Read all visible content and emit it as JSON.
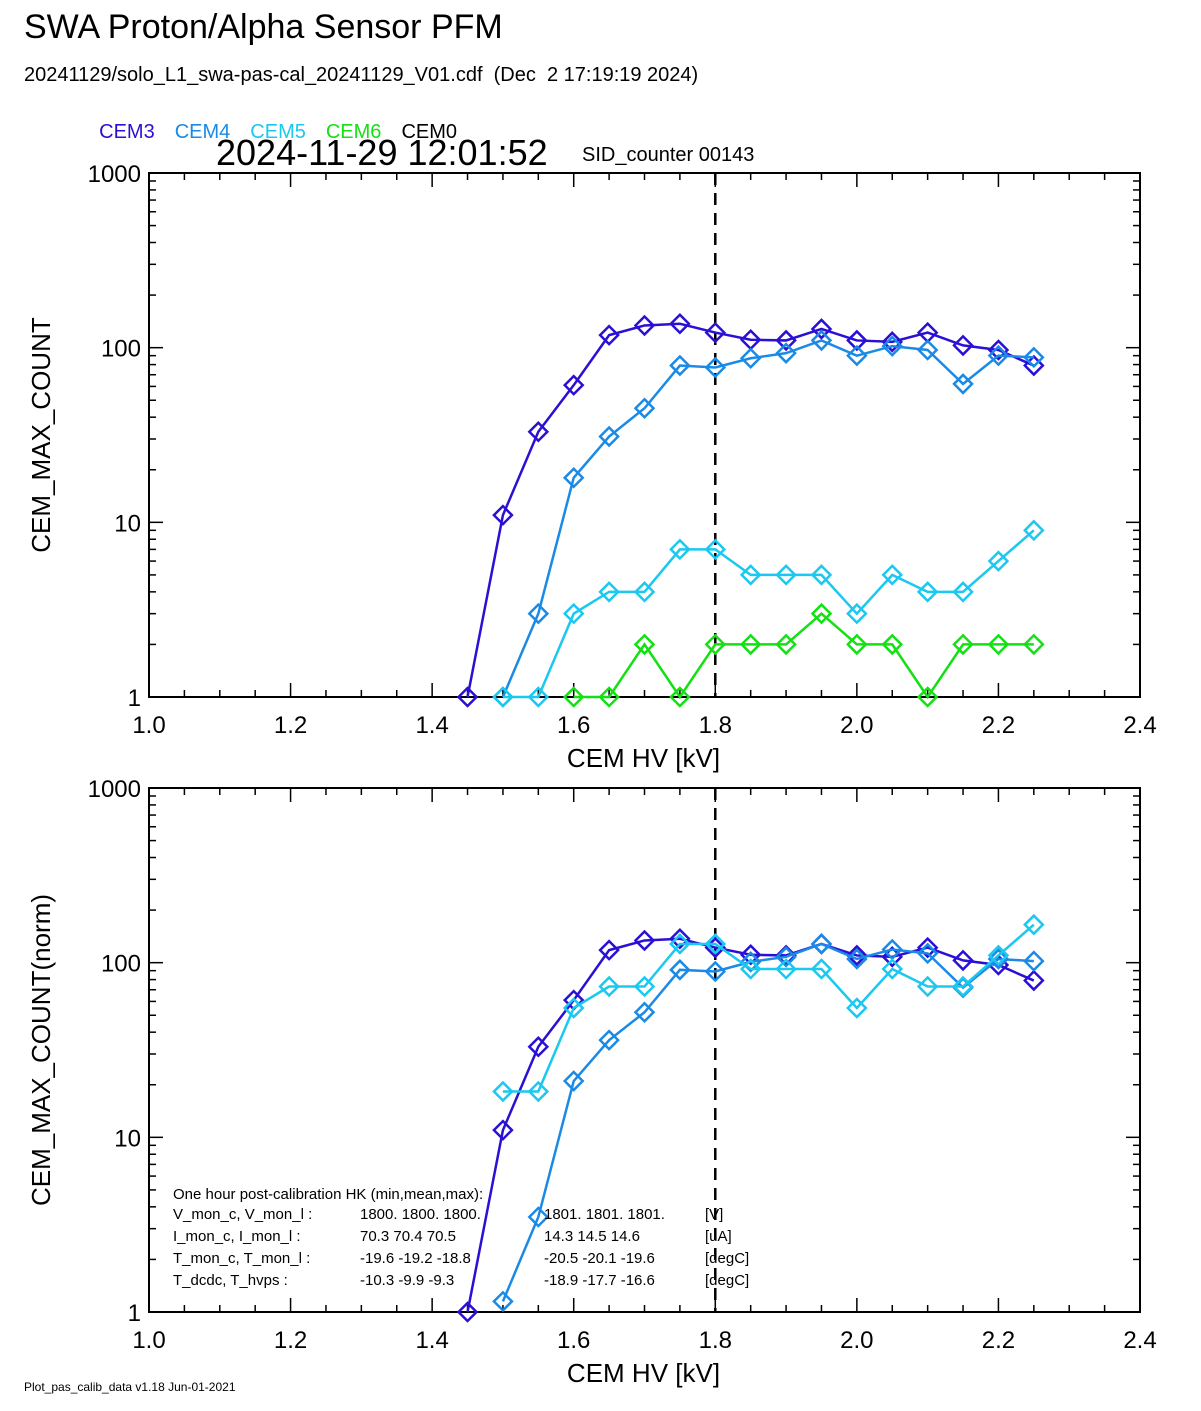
{
  "header": {
    "title": "SWA Proton/Alpha Sensor PFM",
    "subtitle": "20241129/solo_L1_swa-pas-cal_20241129_V01.cdf  (Dec  2 17:19:19 2024)",
    "timestamp": "2024-11-29 12:01:52",
    "sid_counter": "SID_counter 00143"
  },
  "legend": [
    {
      "label": "CEM3",
      "color": "#2a10d4"
    },
    {
      "label": "CEM4",
      "color": "#1a8ae6"
    },
    {
      "label": "CEM5",
      "color": "#1ac8f0"
    },
    {
      "label": "CEM6",
      "color": "#14e014"
    },
    {
      "label": "CEM0",
      "color": "#000000"
    }
  ],
  "footer": "Plot_pas_calib_data v1.18 Jun-01-2021",
  "chart_data": [
    {
      "type": "line",
      "xlabel": "CEM HV [kV]",
      "ylabel": "CEM_MAX_COUNT",
      "xlim": [
        1.0,
        2.4
      ],
      "ylim": [
        1,
        1000
      ],
      "yscale": "log",
      "xticks": [
        "1.0",
        "1.2",
        "1.4",
        "1.6",
        "1.8",
        "2.0",
        "2.2",
        "2.4"
      ],
      "yticks": [
        "1",
        "10",
        "100",
        "1000"
      ],
      "marker": "diamond",
      "vline": 1.8,
      "series": [
        {
          "name": "CEM3",
          "color": "#2a10d4",
          "x": [
            1.45,
            1.5,
            1.55,
            1.6,
            1.65,
            1.7,
            1.75,
            1.8,
            1.85,
            1.9,
            1.95,
            2.0,
            2.05,
            2.1,
            2.15,
            2.2,
            2.25
          ],
          "y": [
            1,
            11,
            33,
            61,
            118,
            134,
            137,
            122,
            111,
            110,
            128,
            110,
            108,
            122,
            103,
            97,
            79
          ]
        },
        {
          "name": "CEM4",
          "color": "#1a8ae6",
          "x": [
            1.5,
            1.55,
            1.6,
            1.65,
            1.7,
            1.75,
            1.8,
            1.85,
            1.9,
            1.95,
            2.0,
            2.05,
            2.1,
            2.15,
            2.2,
            2.25
          ],
          "y": [
            1,
            3,
            18,
            31,
            45,
            79,
            77,
            87,
            93,
            110,
            90,
            102,
            97,
            62,
            90,
            88
          ]
        },
        {
          "name": "CEM5",
          "color": "#1ac8f0",
          "x": [
            1.5,
            1.55,
            1.6,
            1.65,
            1.7,
            1.75,
            1.8,
            1.85,
            1.9,
            1.95,
            2.0,
            2.05,
            2.1,
            2.15,
            2.2,
            2.25
          ],
          "y": [
            1,
            1,
            3,
            4,
            4,
            7,
            7,
            5,
            5,
            5,
            3,
            5,
            4,
            4,
            6,
            9
          ]
        },
        {
          "name": "CEM6",
          "color": "#14e014",
          "x": [
            1.6,
            1.65,
            1.7,
            1.75,
            1.8,
            1.85,
            1.9,
            1.95,
            2.0,
            2.05,
            2.1,
            2.15,
            2.2,
            2.25
          ],
          "y": [
            1,
            1,
            2,
            1,
            2,
            2,
            2,
            3,
            2,
            2,
            1,
            2,
            2,
            2
          ]
        }
      ]
    },
    {
      "type": "line",
      "xlabel": "CEM HV [kV]",
      "ylabel": "CEM_MAX_COUNT(norm)",
      "xlim": [
        1.0,
        2.4
      ],
      "ylim": [
        1,
        1000
      ],
      "yscale": "log",
      "xticks": [
        "1.0",
        "1.2",
        "1.4",
        "1.6",
        "1.8",
        "2.0",
        "2.2",
        "2.4"
      ],
      "yticks": [
        "1",
        "10",
        "100",
        "1000"
      ],
      "marker": "diamond",
      "vline": 1.8,
      "series": [
        {
          "name": "CEM3",
          "color": "#2a10d4",
          "x": [
            1.45,
            1.5,
            1.55,
            1.6,
            1.65,
            1.7,
            1.75,
            1.8,
            1.85,
            1.9,
            1.95,
            2.0,
            2.05,
            2.1,
            2.15,
            2.2,
            2.25
          ],
          "y": [
            1,
            11,
            33,
            61,
            118,
            134,
            137,
            122,
            111,
            110,
            128,
            110,
            108,
            122,
            103,
            97,
            79
          ]
        },
        {
          "name": "CEM4",
          "color": "#1a8ae6",
          "x": [
            1.5,
            1.55,
            1.6,
            1.65,
            1.7,
            1.75,
            1.8,
            1.85,
            1.9,
            1.95,
            2.0,
            2.05,
            2.1,
            2.15,
            2.2,
            2.25
          ],
          "y": [
            1.15,
            3.5,
            21,
            36,
            52,
            91,
            89,
            101,
            108,
            128,
            105,
            119,
            113,
            72,
            105,
            102
          ]
        },
        {
          "name": "CEM5",
          "color": "#1ac8f0",
          "x": [
            1.5,
            1.55,
            1.6,
            1.65,
            1.7,
            1.75,
            1.8,
            1.85,
            1.9,
            1.95,
            2.0,
            2.05,
            2.1,
            2.15,
            2.2,
            2.25
          ],
          "y": [
            18.3,
            18.3,
            55,
            73,
            73,
            128,
            128,
            92,
            92,
            92,
            55,
            92,
            73,
            73,
            110,
            165
          ]
        }
      ],
      "annotation": {
        "heading": "One hour post-calibration HK (min,mean,max):",
        "rows": [
          {
            "label": "V_mon_c, V_mon_l :",
            "a": "1800.  1800.  1800.",
            "b": "1801.  1801.  1801.",
            "unit": "[V]"
          },
          {
            "label": "I_mon_c,  I_mon_l :",
            "a": "70.3   70.4   70.5",
            "b": "14.3   14.5   14.6",
            "unit": "[uA]"
          },
          {
            "label": "T_mon_c, T_mon_l :",
            "a": "-19.6  -19.2  -18.8",
            "b": "-20.5  -20.1  -19.6",
            "unit": "[degC]"
          },
          {
            "label": "T_dcdc,    T_hvps :",
            "a": "-10.3   -9.9   -9.3",
            "b": "-18.9  -17.7  -16.6",
            "unit": "[degC]"
          }
        ]
      }
    }
  ]
}
